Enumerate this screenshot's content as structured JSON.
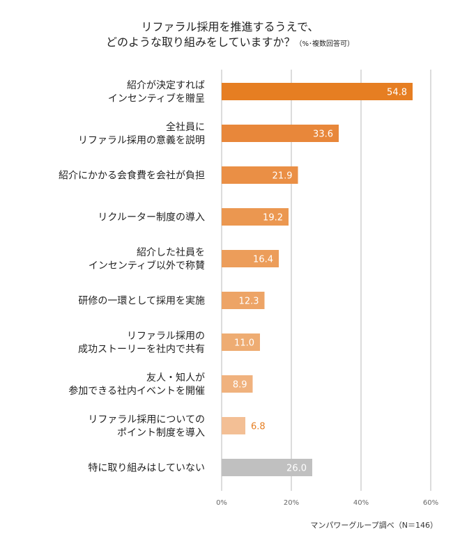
{
  "chart_data": {
    "type": "bar",
    "orientation": "horizontal",
    "title_line1": "リファラル採用を推進するうえで、",
    "title_line2": "どのような取り組みをしていますか？",
    "title_note": "（%･複数回答可）",
    "categories": [
      [
        "紹介が決定すれば",
        "インセンティブを贈呈"
      ],
      [
        "全社員に",
        "リファラル採用の意義を説明"
      ],
      [
        "紹介にかかる会食費を会社が負担"
      ],
      [
        "リクルーター制度の導入"
      ],
      [
        "紹介した社員を",
        "インセンティブ以外で称賛"
      ],
      [
        "研修の一環として採用を実施"
      ],
      [
        "リファラル採用の",
        "成功ストーリーを社内で共有"
      ],
      [
        "友人・知人が",
        "参加できる社内イベントを開催"
      ],
      [
        "リファラル採用についての",
        "ポイント制度を導入"
      ],
      [
        "特に取り組みはしていない"
      ]
    ],
    "values": [
      54.8,
      33.6,
      21.9,
      19.2,
      16.4,
      12.3,
      11.0,
      8.9,
      6.8,
      26.0
    ],
    "value_labels": [
      "54.8",
      "33.6",
      "21.9",
      "19.2",
      "16.4",
      "12.3",
      "11.0",
      "8.9",
      "6.8",
      "26.0"
    ],
    "bar_colors": [
      "#e67e22",
      "#e8873a",
      "#ea8f45",
      "#eb9750",
      "#ec9d5a",
      "#eda466",
      "#eeac72",
      "#f0b27e",
      "#f3bf95",
      "#c0c0c0"
    ],
    "outside_label_color": "#e67e22",
    "xlim": [
      0,
      60
    ],
    "xticks": [
      0,
      20,
      40,
      60
    ],
    "xtick_labels": [
      "0%",
      "20%",
      "40%",
      "60%"
    ],
    "grid": true,
    "source": "マンパワーグループ調べ（N＝146）"
  }
}
